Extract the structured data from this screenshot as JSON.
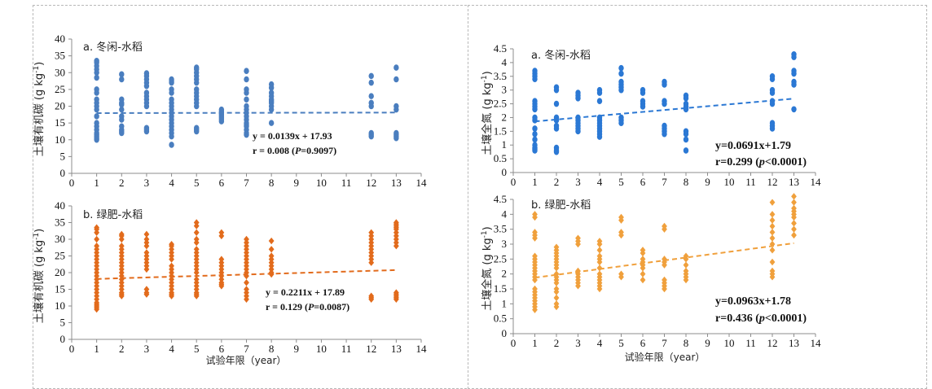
{
  "x_axis_label": "试验年限（year）",
  "chart_data": [
    {
      "id": "soc-fallow",
      "type": "scatter",
      "panel_label": "a. 冬闲-水稻",
      "ylabel": "土壤有机碳 (g kg-1)",
      "ylabel_main": "土壤有机碳 (g kg",
      "ylabel_sup": "-1",
      "ylabel_close": ")",
      "xlim": [
        0,
        14
      ],
      "ylim": [
        0,
        40
      ],
      "xticks": [
        0,
        1,
        2,
        3,
        4,
        5,
        6,
        7,
        8,
        9,
        10,
        11,
        12,
        13,
        14
      ],
      "yticks": [
        0,
        5,
        10,
        15,
        20,
        25,
        30,
        35,
        40
      ],
      "color": "#4a7ebf",
      "marker": "circle",
      "equation": "y = 0.0139x + 17.93",
      "stat_prefix": "r = 0.008 (",
      "stat_italic": "P",
      "stat_suffix": "=0.9097)",
      "trend": {
        "slope": 0.0139,
        "intercept": 17.93
      },
      "points": {
        "1": [
          33.5,
          33,
          32,
          31,
          30,
          28.5,
          25,
          24,
          22,
          21,
          20,
          19,
          17,
          15,
          14,
          13,
          12,
          11.5,
          11,
          10.5,
          10
        ],
        "2": [
          29.5,
          28,
          22,
          21,
          20.5,
          19,
          17,
          16,
          14,
          13,
          12.5,
          12
        ],
        "3": [
          29.8,
          29,
          28,
          27,
          26,
          24,
          23,
          22,
          21,
          20,
          13.5,
          13,
          12.5
        ],
        "4": [
          28,
          27.5,
          27,
          25,
          24,
          22,
          21,
          20,
          19,
          18,
          17,
          16,
          15,
          14,
          13,
          12,
          11,
          8.5
        ],
        "5": [
          31.5,
          31,
          30,
          29,
          28,
          27,
          25,
          24,
          23,
          22,
          21,
          20,
          13.5,
          13,
          12.5
        ],
        "6": [
          19,
          18.5,
          18,
          17.5,
          17,
          16.5,
          16,
          15.5
        ],
        "7": [
          30.5,
          28,
          25,
          24,
          22,
          20,
          19,
          18,
          17,
          16,
          15,
          14.5,
          14,
          13,
          12,
          11.5
        ],
        "8": [
          26.5,
          25.5,
          24,
          23,
          22,
          21.5,
          21,
          20,
          19,
          15
        ],
        "12": [
          29,
          27,
          23,
          21,
          20,
          12,
          11.5,
          11
        ],
        "13": [
          31.5,
          28,
          20,
          19,
          12,
          11.5,
          11,
          10.5
        ]
      }
    },
    {
      "id": "soc-green",
      "type": "scatter",
      "panel_label": "b. 绿肥-水稻",
      "ylabel": "土壤有机碳 (g kg-1)",
      "ylabel_main": "土壤有机碳 (g kg",
      "ylabel_sup": "-1",
      "ylabel_close": ")",
      "xlim": [
        0,
        14
      ],
      "ylim": [
        0,
        40
      ],
      "xticks": [
        0,
        1,
        2,
        3,
        4,
        5,
        6,
        7,
        8,
        9,
        10,
        11,
        12,
        13,
        14
      ],
      "yticks": [
        0,
        5,
        10,
        15,
        20,
        25,
        30,
        35,
        40
      ],
      "color": "#e26b1c",
      "marker": "diamond",
      "equation": "y = 0.2211x + 17.89",
      "stat_prefix": "r = 0.129 (",
      "stat_italic": "P",
      "stat_suffix": "=0.0087)",
      "trend": {
        "slope": 0.2211,
        "intercept": 17.89
      },
      "points": {
        "1": [
          33.5,
          33,
          32,
          30,
          28,
          27,
          26,
          25,
          24,
          23,
          22,
          21,
          20,
          19,
          18,
          17,
          16,
          15,
          14,
          13,
          12,
          11,
          10.5,
          10,
          9.5,
          9
        ],
        "2": [
          31.5,
          31,
          30,
          28,
          27,
          26,
          25,
          24,
          23,
          22,
          21,
          20,
          19,
          18,
          17,
          16,
          15,
          14,
          13.5,
          13
        ],
        "3": [
          31.5,
          30,
          29,
          28,
          26,
          25,
          24,
          23,
          22,
          21,
          15,
          14,
          13.5
        ],
        "4": [
          28.5,
          28,
          27,
          26,
          25,
          24,
          22,
          21,
          20,
          19,
          18,
          17,
          16,
          15,
          14,
          13.5,
          13
        ],
        "5": [
          35,
          34,
          32,
          30,
          29,
          27,
          26,
          25,
          24,
          23,
          22,
          21,
          20,
          18,
          17,
          16,
          15,
          14,
          13.5,
          13
        ],
        "6": [
          32,
          31,
          24,
          23,
          22,
          21,
          20,
          19,
          18,
          17,
          16.5,
          16
        ],
        "7": [
          30,
          29,
          28,
          27,
          26,
          25,
          24,
          23,
          22,
          21,
          20,
          19,
          17,
          15,
          14,
          13,
          12
        ],
        "8": [
          29.5,
          27,
          25,
          24,
          23,
          22,
          21,
          20,
          19.5
        ],
        "12": [
          32,
          31,
          30,
          29,
          28,
          27,
          26,
          25,
          24,
          23,
          13,
          12.5,
          12
        ],
        "13": [
          35,
          34.5,
          34,
          33.5,
          33,
          32,
          31,
          30,
          29,
          28,
          14,
          13.5,
          13,
          12.5,
          12
        ]
      }
    },
    {
      "id": "tn-fallow",
      "type": "scatter",
      "panel_label": "a. 冬闲-水稻",
      "ylabel": "土壤全氮 (g kg-1)",
      "ylabel_main": "土壤全氮 (g kg",
      "ylabel_sup": "-1",
      "ylabel_close": ")",
      "xlim": [
        0,
        14
      ],
      "ylim": [
        0,
        4.5
      ],
      "xticks": [
        0,
        1,
        2,
        3,
        4,
        5,
        6,
        7,
        8,
        9,
        10,
        11,
        12,
        13,
        14
      ],
      "yticks": [
        0,
        0.5,
        1,
        1.5,
        2,
        2.5,
        3,
        3.5,
        4,
        4.5
      ],
      "color": "#2b78d4",
      "marker": "circle",
      "equation": "y=0.0691x+1.79",
      "stat_prefix": "r=0.299 (",
      "stat_italic": "p",
      "stat_suffix": "<0.0001)",
      "trend": {
        "slope": 0.0691,
        "intercept": 1.79
      },
      "points": {
        "1": [
          3.7,
          3.6,
          3.5,
          3.4,
          2.6,
          2.5,
          2.4,
          2.3,
          2.0,
          1.9,
          1.6,
          1.4,
          1.2,
          1.0,
          0.9,
          0.85,
          0.8
        ],
        "2": [
          3.1,
          3.0,
          2.5,
          2.0,
          1.9,
          1.7,
          1.6,
          0.9,
          0.8,
          0.75
        ],
        "3": [
          2.9,
          2.8,
          2.7,
          2.0,
          1.9,
          1.8,
          1.7,
          1.6,
          1.5
        ],
        "4": [
          3.0,
          2.9,
          2.6,
          2.0,
          1.9,
          1.8,
          1.7,
          1.6,
          1.5,
          1.4,
          1.3
        ],
        "5": [
          3.8,
          3.6,
          3.3,
          3.2,
          3.1,
          3.0,
          2.0,
          1.9,
          1.8
        ],
        "6": [
          3.0,
          2.9,
          2.6,
          2.5,
          2.4
        ],
        "7": [
          3.3,
          3.2,
          2.6,
          2.5,
          1.7,
          1.6,
          1.5,
          1.4
        ],
        "8": [
          2.8,
          2.7,
          2.5,
          2.4,
          2.3,
          1.5,
          1.4,
          1.2,
          0.8
        ],
        "12": [
          3.5,
          3.4,
          3.0,
          2.9,
          2.6,
          2.5,
          1.8,
          1.7,
          1.6
        ],
        "13": [
          4.3,
          4.2,
          3.7,
          3.6,
          3.3,
          3.2,
          2.3
        ]
      }
    },
    {
      "id": "tn-green",
      "type": "scatter",
      "panel_label": "b. 绿肥-水稻",
      "ylabel": "土壤全氮 (g kg-1)",
      "ylabel_main": "土壤全氮 (g kg",
      "ylabel_sup": "-1",
      "ylabel_close": ")",
      "xlim": [
        0,
        14
      ],
      "ylim": [
        0,
        4.5
      ],
      "xticks": [
        0,
        1,
        2,
        3,
        4,
        5,
        6,
        7,
        8,
        9,
        10,
        11,
        12,
        13,
        14
      ],
      "yticks": [
        0,
        0.5,
        1,
        1.5,
        2,
        2.5,
        3,
        3.5,
        4,
        4.5
      ],
      "color": "#f0a03c",
      "marker": "diamond",
      "equation": "y=0.0963x+1.78",
      "stat_prefix": "r=0.436 (",
      "stat_italic": "p",
      "stat_suffix": "<0.0001)",
      "trend": {
        "slope": 0.0963,
        "intercept": 1.78
      },
      "points": {
        "1": [
          4.0,
          3.9,
          3.4,
          3.3,
          3.2,
          2.6,
          2.5,
          2.4,
          2.3,
          2.2,
          2.1,
          2.0,
          1.9,
          1.8,
          1.5,
          1.4,
          1.3,
          1.2,
          1.1,
          1.0,
          0.9,
          0.8
        ],
        "2": [
          2.9,
          2.8,
          2.7,
          2.6,
          2.5,
          2.4,
          2.3,
          2.2,
          2.0,
          1.9,
          1.8,
          1.7,
          1.5,
          1.4,
          1.2,
          1.0,
          0.9
        ],
        "3": [
          3.2,
          3.1,
          3.0,
          2.1,
          2.0,
          1.9,
          1.8,
          1.7,
          1.6
        ],
        "4": [
          3.1,
          3.0,
          2.8,
          2.6,
          2.5,
          2.4,
          2.2,
          2.0,
          1.9,
          1.8,
          1.7,
          1.6,
          1.5
        ],
        "5": [
          3.9,
          3.8,
          3.4,
          3.3,
          2.0,
          1.9
        ],
        "6": [
          2.8,
          2.7,
          2.5,
          2.4,
          2.3,
          2.2,
          2.0,
          1.8
        ],
        "7": [
          3.6,
          3.5,
          2.5,
          2.4,
          2.3,
          1.8,
          1.7,
          1.6,
          1.5
        ],
        "8": [
          2.6,
          2.5,
          2.3,
          2.1,
          2.0,
          1.9,
          1.8
        ],
        "12": [
          4.4,
          4.0,
          3.8,
          3.6,
          3.4,
          3.2,
          3.0,
          2.8,
          2.4,
          2.1,
          2.0,
          1.9
        ],
        "13": [
          4.6,
          4.4,
          4.2,
          4.1,
          4.0,
          3.9,
          3.7,
          3.5,
          3.3
        ]
      }
    }
  ]
}
